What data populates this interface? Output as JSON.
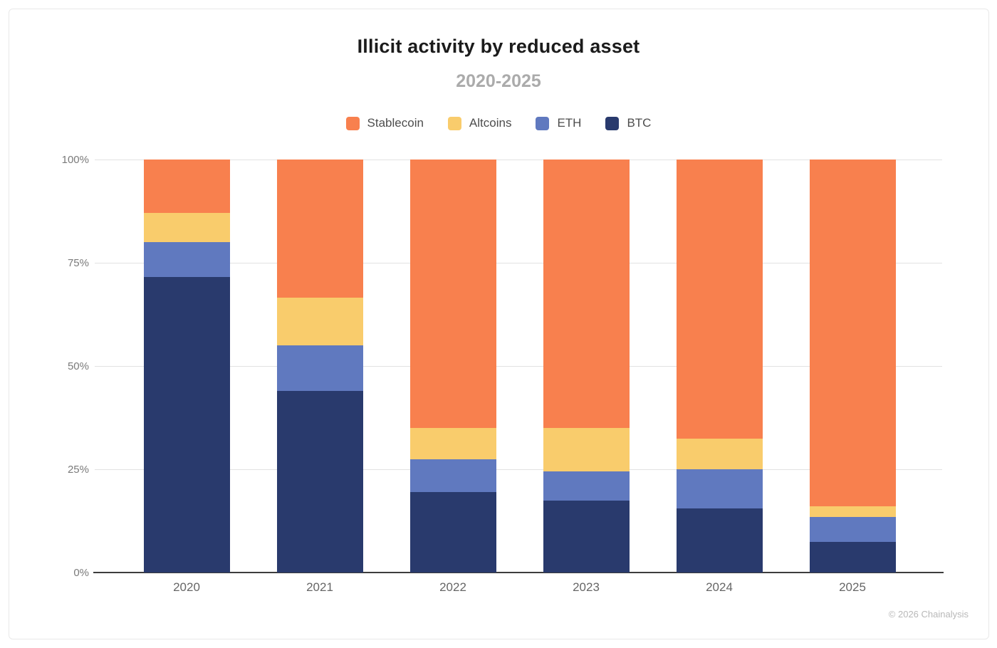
{
  "header": {
    "title": "Illicit activity by reduced asset",
    "subtitle": "2020-2025"
  },
  "legend": [
    {
      "label": "Stablecoin",
      "color": "#f8804e"
    },
    {
      "label": "Altcoins",
      "color": "#f9cc6c"
    },
    {
      "label": "ETH",
      "color": "#6079bf"
    },
    {
      "label": "BTC",
      "color": "#293a6d"
    }
  ],
  "chart_data": {
    "type": "bar",
    "variant": "stacked-percent",
    "title": "Illicit activity by reduced asset",
    "subtitle": "2020-2025",
    "categories": [
      "2020",
      "2021",
      "2022",
      "2023",
      "2024",
      "2025"
    ],
    "series": [
      {
        "name": "BTC",
        "color": "#293a6d",
        "values": [
          71.5,
          44.0,
          19.5,
          17.5,
          15.5,
          7.5
        ]
      },
      {
        "name": "ETH",
        "color": "#6079bf",
        "values": [
          8.5,
          11.0,
          8.0,
          7.0,
          9.5,
          6.0
        ]
      },
      {
        "name": "Altcoins",
        "color": "#f9cc6c",
        "values": [
          7.0,
          11.5,
          7.5,
          10.5,
          7.5,
          2.5
        ]
      },
      {
        "name": "Stablecoin",
        "color": "#f8804e",
        "values": [
          13.0,
          33.5,
          65.0,
          65.0,
          67.5,
          84.0
        ]
      }
    ],
    "stack_order_bottom_to_top": [
      "BTC",
      "ETH",
      "Altcoins",
      "Stablecoin"
    ],
    "xlabel": "",
    "ylabel": "",
    "ylim": [
      0,
      100
    ],
    "yticks": [
      {
        "value": 0,
        "label": "0%"
      },
      {
        "value": 25,
        "label": "25%"
      },
      {
        "value": 50,
        "label": "50%"
      },
      {
        "value": 75,
        "label": "75%"
      },
      {
        "value": 100,
        "label": "100%"
      }
    ],
    "grid": true,
    "legend_position": "top"
  },
  "footer": {
    "copyright": "© 2026 Chainalysis"
  }
}
